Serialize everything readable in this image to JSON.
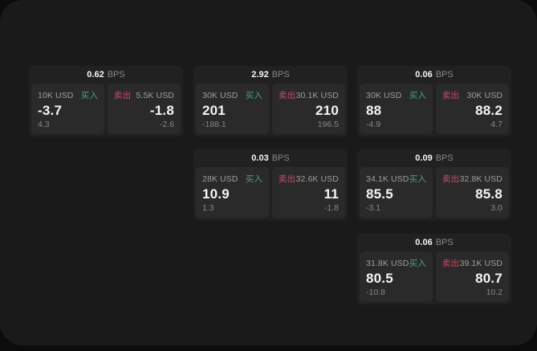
{
  "colors": {
    "background": "#0c0c0c",
    "panel": "#1a1a1a",
    "card": "#212121",
    "pane": "#2a2a2b",
    "buy_green": "#44a86d",
    "sell_red": "#cb4b61"
  },
  "cards": [
    {
      "bps": "0.62",
      "unit": "BPS",
      "buy": {
        "amount": "10K USD",
        "side": "买入",
        "value": "-3.7",
        "delta": "4.3"
      },
      "sell": {
        "side": "卖出",
        "amount": "5.5K USD",
        "value": "-1.8",
        "delta": "-2.6"
      }
    },
    {
      "bps": "2.92",
      "unit": "BPS",
      "buy": {
        "amount": "30K USD",
        "side": "买入",
        "value": "201",
        "delta": "-188.1"
      },
      "sell": {
        "side": "卖出",
        "amount": "30.1K USD",
        "value": "210",
        "delta": "196.5"
      }
    },
    {
      "bps": "0.06",
      "unit": "BPS",
      "buy": {
        "amount": "30K USD",
        "side": "买入",
        "value": "88",
        "delta": "-4.9"
      },
      "sell": {
        "side": "卖出",
        "amount": "30K USD",
        "value": "88.2",
        "delta": "4.7"
      }
    },
    {
      "bps": "0.03",
      "unit": "BPS",
      "buy": {
        "amount": "28K USD",
        "side": "买入",
        "value": "10.9",
        "delta": "1.3"
      },
      "sell": {
        "side": "卖出",
        "amount": "32.6K USD",
        "value": "11",
        "delta": "-1.8"
      }
    },
    {
      "bps": "0.09",
      "unit": "BPS",
      "buy": {
        "amount": "34.1K USD",
        "side": "买入",
        "value": "85.5",
        "delta": "-3.1"
      },
      "sell": {
        "side": "卖出",
        "amount": "32.8K USD",
        "value": "85.8",
        "delta": "3.0"
      }
    },
    {
      "bps": "0.06",
      "unit": "BPS",
      "buy": {
        "amount": "31.8K USD",
        "side": "买入",
        "value": "80.5",
        "delta": "-10.8"
      },
      "sell": {
        "side": "卖出",
        "amount": "39.1K USD",
        "value": "80.7",
        "delta": "10.2"
      }
    }
  ]
}
